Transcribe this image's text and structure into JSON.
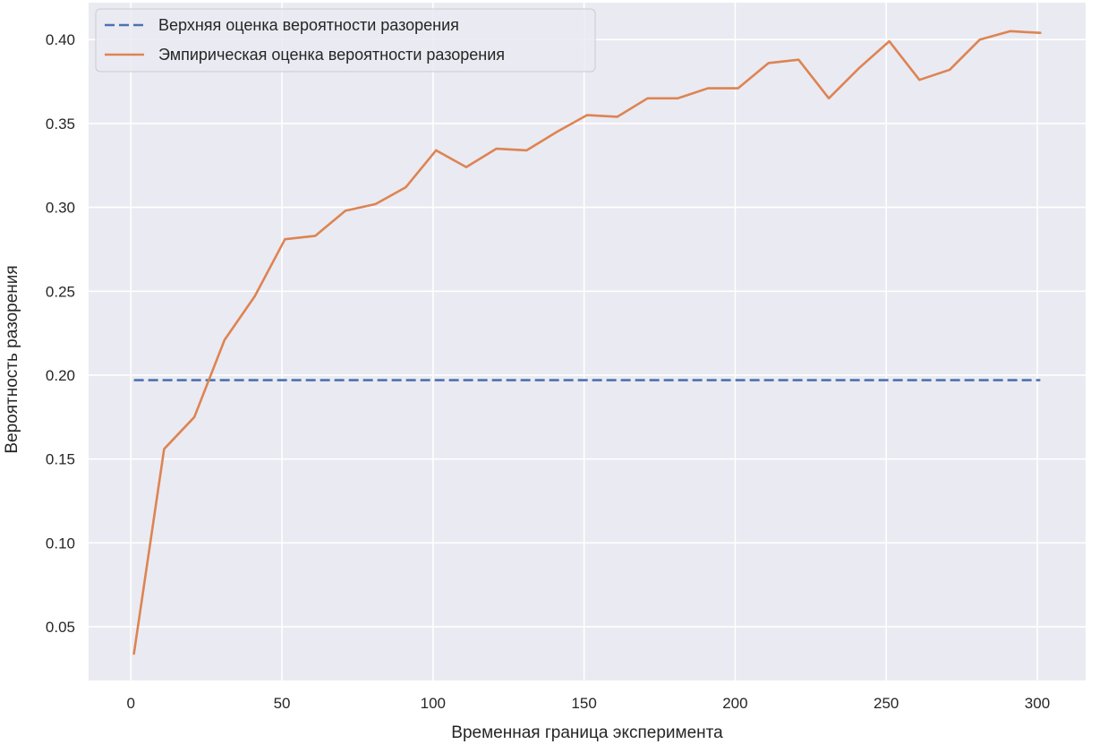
{
  "chart_data": {
    "type": "line",
    "title": "",
    "xlabel": "Временная граница эксперимента",
    "ylabel": "Вероятность разорения",
    "xlim": [
      -14,
      316
    ],
    "ylim": [
      0.018,
      0.422
    ],
    "xticks": [
      0,
      50,
      100,
      150,
      200,
      250,
      300
    ],
    "yticks": [
      0.05,
      0.1,
      0.15,
      0.2,
      0.25,
      0.3,
      0.35,
      0.4
    ],
    "xtick_labels": [
      "0",
      "50",
      "100",
      "150",
      "200",
      "250",
      "300"
    ],
    "ytick_labels": [
      "0.05",
      "0.10",
      "0.15",
      "0.20",
      "0.25",
      "0.30",
      "0.35",
      "0.40"
    ],
    "grid": true,
    "legend_position": "top-left",
    "background": "#eaeaf2",
    "series": [
      {
        "name": "Верхняя оценка вероятности разорения",
        "style": "dashed",
        "color": "#4c72b0",
        "x": [
          1,
          301
        ],
        "y": [
          0.197,
          0.197
        ]
      },
      {
        "name": "Эмпирическая оценка вероятности разорения",
        "style": "solid",
        "color": "#dd8452",
        "x": [
          1,
          11,
          21,
          31,
          41,
          51,
          61,
          71,
          81,
          91,
          101,
          111,
          121,
          131,
          141,
          151,
          161,
          171,
          181,
          191,
          201,
          211,
          221,
          231,
          241,
          251,
          261,
          271,
          281,
          291,
          301
        ],
        "y": [
          0.034,
          0.156,
          0.175,
          0.221,
          0.247,
          0.281,
          0.283,
          0.298,
          0.302,
          0.312,
          0.334,
          0.324,
          0.335,
          0.334,
          0.345,
          0.355,
          0.354,
          0.365,
          0.365,
          0.371,
          0.371,
          0.386,
          0.388,
          0.365,
          0.383,
          0.399,
          0.376,
          0.382,
          0.4,
          0.405,
          0.404
        ]
      }
    ]
  }
}
